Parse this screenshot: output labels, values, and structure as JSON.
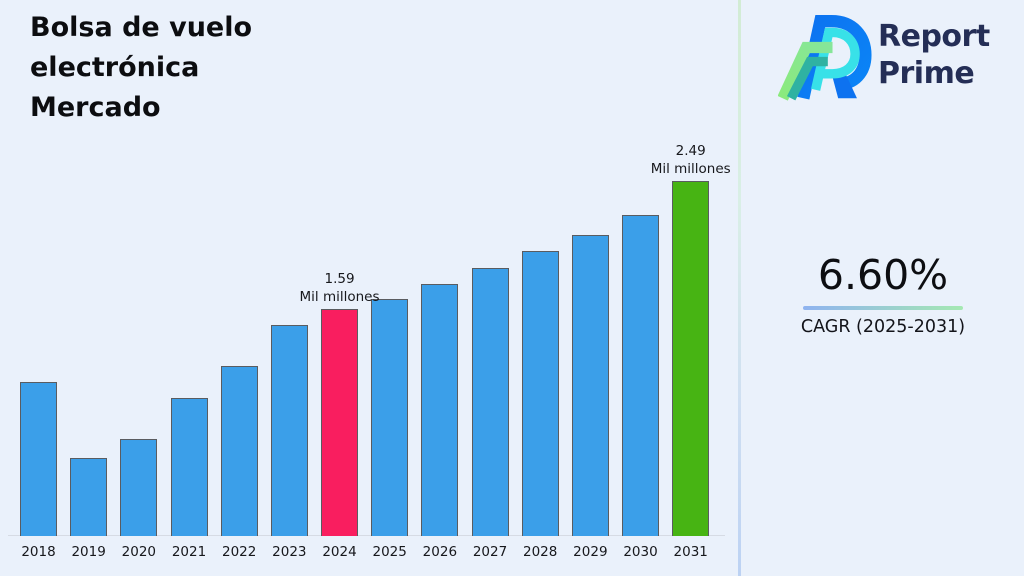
{
  "title": "Bolsa de vuelo electrónica Mercado",
  "logo": {
    "line1": "Report",
    "line2": "Prime",
    "colors": {
      "text": "#242E56",
      "blue": "#0D72F0",
      "cyan": "#38E1E8",
      "green_light": "#8BEA7D",
      "teal": "#2FB2A2"
    }
  },
  "cagr": {
    "value": "6.60%",
    "label": "CAGR (2025-2031)"
  },
  "chart_data": {
    "type": "bar",
    "title": "Bolsa de vuelo electrónica Mercado",
    "xlabel": "",
    "ylabel": "",
    "unit": "Mil millones",
    "categories": [
      "2018",
      "2019",
      "2020",
      "2021",
      "2022",
      "2023",
      "2024",
      "2025",
      "2026",
      "2027",
      "2028",
      "2029",
      "2030",
      "2031"
    ],
    "values": [
      1.08,
      0.55,
      0.68,
      0.97,
      1.19,
      1.48,
      1.59,
      1.66,
      1.77,
      1.88,
      2.0,
      2.11,
      2.25,
      2.49
    ],
    "ylim": [
      0,
      2.7
    ],
    "grid": false,
    "legend": false,
    "default_color": "#3B9FE9",
    "highlights": {
      "2024": "#F91E5F",
      "2031": "#47B413"
    },
    "annotations": [
      {
        "category": "2024",
        "value_label": "1.59",
        "unit_label": "Mil millones"
      },
      {
        "category": "2031",
        "value_label": "2.49",
        "unit_label": "Mil millones"
      }
    ]
  }
}
